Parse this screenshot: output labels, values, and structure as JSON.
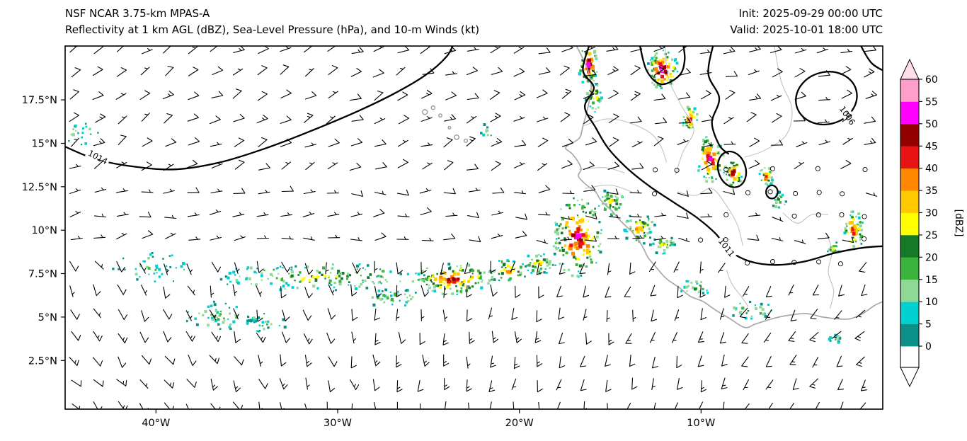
{
  "header": {
    "title_line1": "NSF NCAR 3.75-km MPAS-A",
    "title_line2": "Reflectivity at 1 km AGL (dBZ), Sea-Level Pressure (hPa), and 10-m Winds (kt)",
    "init_label": "Init: 2025-09-29 00:00 UTC",
    "valid_label": "Valid: 2025-10-01 18:00 UTC"
  },
  "chart_data": {
    "type": "heatmap",
    "title": "Reflectivity at 1 km AGL (dBZ), Sea-Level Pressure (hPa), and 10-m Winds (kt)",
    "xlabel": "",
    "ylabel": "",
    "extent": {
      "lon_min": -45.0,
      "lon_max": 0.0,
      "lat_min": -0.3,
      "lat_max": 20.6
    },
    "x_ticks": [
      {
        "lon": -40,
        "label": "40°W"
      },
      {
        "lon": -30,
        "label": "30°W"
      },
      {
        "lon": -20,
        "label": "20°W"
      },
      {
        "lon": -10,
        "label": "10°W"
      }
    ],
    "y_ticks": [
      {
        "lat": 2.5,
        "label": "2.5°N"
      },
      {
        "lat": 5.0,
        "label": "5°N"
      },
      {
        "lat": 7.5,
        "label": "7.5°N"
      },
      {
        "lat": 10.0,
        "label": "10°N"
      },
      {
        "lat": 12.5,
        "label": "12.5°N"
      },
      {
        "lat": 15.0,
        "label": "15°N"
      },
      {
        "lat": 17.5,
        "label": "17.5°N"
      }
    ],
    "colorbar": {
      "label": "[dBZ]",
      "ticks": [
        0,
        5,
        10,
        15,
        20,
        25,
        30,
        35,
        40,
        45,
        50,
        55,
        60
      ],
      "colors": [
        "#0b8f86",
        "#00d0d0",
        "#8fd998",
        "#3cb43c",
        "#157a28",
        "#ffff00",
        "#ffc800",
        "#ff8800",
        "#e81313",
        "#930000",
        "#ff00ff",
        "#ff9ecb"
      ],
      "under": "#ffffff",
      "over": "#ffdeeb"
    },
    "pressure_contours": [
      {
        "label": "1014",
        "label_at": [
          -43.2,
          14.2
        ],
        "label_angle": 28,
        "points": [
          [
            -45.4,
            15.0
          ],
          [
            -43.5,
            14.15
          ],
          [
            -41.5,
            13.7
          ],
          [
            -39.0,
            13.5
          ],
          [
            -36.5,
            13.9
          ],
          [
            -34.0,
            14.7
          ],
          [
            -31.5,
            15.7
          ],
          [
            -29.0,
            16.8
          ],
          [
            -27.0,
            17.8
          ],
          [
            -25.2,
            18.9
          ],
          [
            -24.0,
            20.0
          ],
          [
            -23.6,
            20.8
          ]
        ]
      },
      {
        "label": "1011",
        "label_at": [
          -8.6,
          9.0
        ],
        "label_angle": 52,
        "points": [
          [
            -16.1,
            20.8
          ],
          [
            -16.5,
            19.2
          ],
          [
            -15.9,
            18.2
          ],
          [
            -16.4,
            17.1
          ],
          [
            -15.8,
            15.9
          ],
          [
            -15.1,
            14.7
          ],
          [
            -14.0,
            13.5
          ],
          [
            -12.8,
            12.5
          ],
          [
            -11.5,
            11.6
          ],
          [
            -10.2,
            10.7
          ],
          [
            -9.2,
            9.8
          ],
          [
            -8.4,
            8.8
          ],
          [
            -7.3,
            8.2
          ],
          [
            -5.9,
            8.0
          ],
          [
            -4.3,
            8.2
          ],
          [
            -2.6,
            8.7
          ],
          [
            -1.0,
            9.0
          ],
          [
            0.4,
            9.1
          ]
        ]
      },
      {
        "points": [
          [
            -9.3,
            20.8
          ],
          [
            -9.6,
            19.0
          ],
          [
            -9.0,
            17.6
          ],
          [
            -9.4,
            16.2
          ],
          [
            -9.0,
            14.9
          ],
          [
            -8.5,
            14.4
          ]
        ]
      },
      {
        "points": [
          [
            -13.4,
            20.8
          ],
          [
            -13.0,
            19.2
          ],
          [
            -12.2,
            18.4
          ],
          [
            -11.2,
            18.9
          ],
          [
            -10.9,
            19.8
          ],
          [
            -11.0,
            20.8
          ]
        ]
      },
      {
        "ellipse": {
          "cx": -8.3,
          "cy": 13.5,
          "rx": 0.75,
          "ry": 1.05,
          "rot": -18
        }
      },
      {
        "ellipse": {
          "cx": -6.1,
          "cy": 12.2,
          "rx": 0.32,
          "ry": 0.38,
          "rot": 0
        }
      },
      {
        "label": "1006",
        "label_at": [
          -1.95,
          16.6
        ],
        "label_angle": 55,
        "ellipse": {
          "cx": -3.1,
          "cy": 17.6,
          "rx": 1.7,
          "ry": 1.5,
          "rot": -15
        }
      },
      {
        "points": [
          [
            -1.3,
            20.8
          ],
          [
            -0.6,
            19.6
          ],
          [
            0.4,
            19.0
          ]
        ]
      }
    ],
    "coastline": [
      [
        -16.95,
        20.8
      ],
      [
        -16.3,
        19.4
      ],
      [
        -16.05,
        18.3
      ],
      [
        -16.2,
        17.2
      ],
      [
        -16.5,
        16.0
      ],
      [
        -16.7,
        15.3
      ],
      [
        -17.3,
        14.9
      ],
      [
        -17.45,
        14.7
      ],
      [
        -17.1,
        14.4
      ],
      [
        -16.75,
        13.9
      ],
      [
        -16.6,
        13.5
      ],
      [
        -16.75,
        13.1
      ],
      [
        -16.3,
        12.6
      ],
      [
        -15.8,
        12.2
      ],
      [
        -15.5,
        11.7
      ],
      [
        -14.9,
        11.1
      ],
      [
        -14.4,
        10.5
      ],
      [
        -13.8,
        9.9
      ],
      [
        -13.6,
        9.6
      ],
      [
        -13.3,
        9.2
      ],
      [
        -13.1,
        8.8
      ],
      [
        -12.9,
        8.4
      ],
      [
        -12.5,
        7.9
      ],
      [
        -11.9,
        7.2
      ],
      [
        -11.2,
        6.7
      ],
      [
        -10.6,
        6.2
      ],
      [
        -9.9,
        5.9
      ],
      [
        -9.2,
        5.4
      ],
      [
        -8.4,
        4.9
      ],
      [
        -7.6,
        4.4
      ],
      [
        -7.0,
        4.6
      ],
      [
        -6.1,
        4.9
      ],
      [
        -5.2,
        5.1
      ],
      [
        -4.2,
        5.2
      ],
      [
        -3.3,
        5.0
      ],
      [
        -2.5,
        4.9
      ],
      [
        -1.8,
        4.9
      ],
      [
        -1.1,
        5.2
      ],
      [
        -0.4,
        5.7
      ],
      [
        0.3,
        6.0
      ]
    ],
    "borders": [
      [
        [
          -16.5,
          16.0
        ],
        [
          -15.2,
          16.4
        ],
        [
          -14.0,
          16.2
        ],
        [
          -12.8,
          15.6
        ],
        [
          -12.2,
          14.8
        ],
        [
          -11.9,
          13.9
        ]
      ],
      [
        [
          -12.0,
          20.8
        ],
        [
          -11.8,
          18.8
        ],
        [
          -11.1,
          17.2
        ],
        [
          -10.4,
          15.8
        ],
        [
          -11.0,
          14.5
        ],
        [
          -11.4,
          13.2
        ]
      ],
      [
        [
          -16.7,
          13.5
        ],
        [
          -15.3,
          13.6
        ],
        [
          -14.2,
          13.3
        ]
      ],
      [
        [
          -16.4,
          12.4
        ],
        [
          -15.0,
          12.6
        ],
        [
          -13.8,
          12.2
        ]
      ],
      [
        [
          -11.3,
          12.2
        ],
        [
          -10.3,
          12.0
        ],
        [
          -9.4,
          12.4
        ],
        [
          -8.6,
          11.4
        ],
        [
          -8.0,
          10.3
        ],
        [
          -7.7,
          9.1
        ]
      ],
      [
        [
          -8.6,
          7.7
        ],
        [
          -8.3,
          6.9
        ],
        [
          -7.8,
          6.2
        ],
        [
          -7.4,
          5.6
        ]
      ],
      [
        [
          -3.1,
          9.8
        ],
        [
          -2.8,
          8.8
        ],
        [
          -3.0,
          7.6
        ],
        [
          -2.7,
          6.5
        ],
        [
          -2.9,
          5.5
        ]
      ],
      [
        [
          -5.5,
          11.0
        ],
        [
          -4.7,
          10.4
        ],
        [
          -3.9,
          10.9
        ],
        [
          -3.0,
          10.9
        ]
      ],
      [
        [
          -6.0,
          20.8
        ],
        [
          -5.6,
          18.6
        ],
        [
          -5.0,
          17.0
        ],
        [
          -5.3,
          15.5
        ],
        [
          -6.5,
          14.6
        ],
        [
          -7.6,
          14.2
        ]
      ]
    ],
    "islands": [
      [
        -25.2,
        16.8,
        3.5
      ],
      [
        -24.75,
        17.05,
        2.6
      ],
      [
        -24.35,
        16.6,
        2.2
      ],
      [
        -23.45,
        15.35,
        3.2
      ],
      [
        -22.95,
        15.15,
        2.4
      ],
      [
        -23.85,
        15.9,
        1.8
      ]
    ],
    "reflectivity_clusters": [
      [
        -40.3,
        7.8,
        2.3,
        0.9,
        45,
        15
      ],
      [
        -36.3,
        5.1,
        2.6,
        0.8,
        55,
        18
      ],
      [
        -31.0,
        7.3,
        6.0,
        0.8,
        160,
        26
      ],
      [
        -27.0,
        6.1,
        1.6,
        0.6,
        40,
        18
      ],
      [
        -34.0,
        4.6,
        1.2,
        0.5,
        25,
        15
      ],
      [
        -23.6,
        7.2,
        2.3,
        0.9,
        130,
        46
      ],
      [
        -20.6,
        7.7,
        1.1,
        0.7,
        45,
        38
      ],
      [
        -18.9,
        8.1,
        0.9,
        0.7,
        40,
        30
      ],
      [
        -16.8,
        9.6,
        1.4,
        2.3,
        170,
        50
      ],
      [
        -14.9,
        11.6,
        0.8,
        0.8,
        45,
        30
      ],
      [
        -13.4,
        10.1,
        0.9,
        0.9,
        55,
        36
      ],
      [
        -12.1,
        9.2,
        0.7,
        0.6,
        30,
        26
      ],
      [
        -16.2,
        19.5,
        0.55,
        1.2,
        70,
        52
      ],
      [
        -15.9,
        17.7,
        0.45,
        0.9,
        35,
        36
      ],
      [
        -12.1,
        19.2,
        0.85,
        1.15,
        90,
        56
      ],
      [
        -10.6,
        16.4,
        0.45,
        0.75,
        35,
        46
      ],
      [
        -9.5,
        14.1,
        0.75,
        1.35,
        80,
        50
      ],
      [
        -8.2,
        13.3,
        0.55,
        0.85,
        45,
        46
      ],
      [
        -6.4,
        13.1,
        0.45,
        0.55,
        28,
        40
      ],
      [
        -5.7,
        11.7,
        0.4,
        0.5,
        20,
        26
      ],
      [
        -1.6,
        10.0,
        0.55,
        1.25,
        65,
        42
      ],
      [
        -2.7,
        8.9,
        0.35,
        0.45,
        16,
        30
      ],
      [
        -2.6,
        3.8,
        0.35,
        0.35,
        12,
        15
      ],
      [
        -44.2,
        15.6,
        1.3,
        0.7,
        22,
        14
      ],
      [
        -10.3,
        6.7,
        0.9,
        0.5,
        26,
        20
      ],
      [
        -7.3,
        5.4,
        1.3,
        0.5,
        30,
        24
      ],
      [
        -21.8,
        15.7,
        0.4,
        0.4,
        10,
        12
      ]
    ],
    "wind_field": {
      "spacing_px": 33,
      "staff_len": 16,
      "regions": [
        {
          "lat_min": 12.5,
          "lat_max": 21.0,
          "dir_a": 60,
          "dir_b": 0.3,
          "speed": 9
        },
        {
          "lat_min": 8.5,
          "lat_max": 12.5,
          "dir_a": 78,
          "dir_b": 0.5,
          "speed": 6
        },
        {
          "lat_min": 4.5,
          "lat_max": 8.5,
          "dir_a": 148,
          "dir_b": 1.5,
          "speed": 8
        },
        {
          "lat_min": -0.5,
          "lat_max": 4.5,
          "dir_a": 138,
          "dir_b": 1.8,
          "speed": 11
        }
      ],
      "calm_zones": [
        {
          "lon_min": -13.5,
          "lon_max": 0.5,
          "lat_min": 7.0,
          "lat_max": 14.0,
          "prob": 0.5
        },
        {
          "lon_min": -24.0,
          "lon_max": -18.0,
          "lat_min": 9.0,
          "lat_max": 12.0,
          "prob": 0.22
        }
      ]
    }
  }
}
